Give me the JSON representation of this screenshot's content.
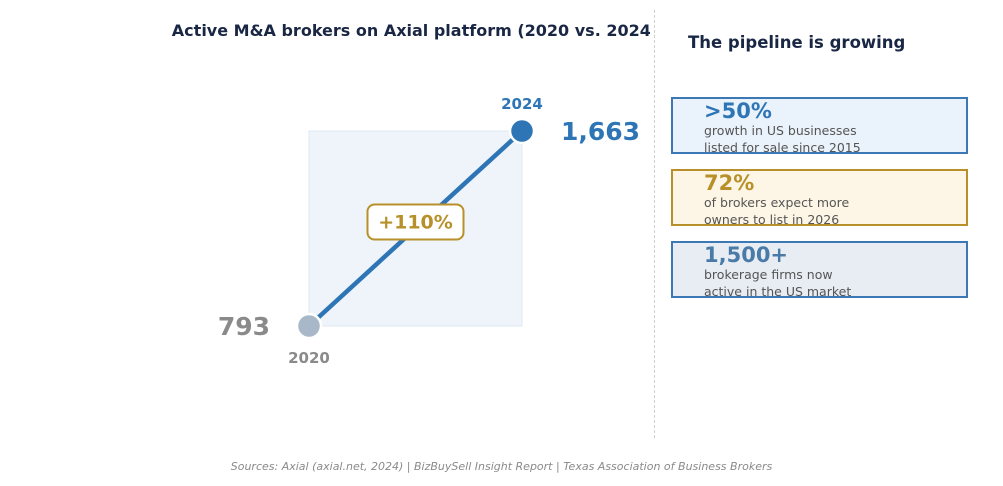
{
  "chart_data": {
    "type": "line",
    "title": "Active M&A brokers on Axial platform (2020 vs. 2024)",
    "categories": [
      "2020",
      "2024"
    ],
    "series": [
      {
        "name": "Active M&A brokers",
        "values": [
          793,
          1663
        ]
      }
    ],
    "value_labels": [
      "793",
      "1,663"
    ],
    "annotation": "+110%",
    "ylim": [
      793,
      1663
    ],
    "colors": {
      "start": "#a9b8c8",
      "end": "#2e75b6",
      "line": "#2e75b6",
      "annotation": "#b8902a",
      "start_text": "#8a8a8a",
      "title": "#1a2744"
    }
  },
  "panel": {
    "title": "The pipeline is growing",
    "cards": [
      {
        "value": ">50%",
        "text_line1": "growth in US businesses",
        "text_line2": "listed for sale since 2015",
        "accent": "#2e75b6",
        "background": "#eaf2fb",
        "border": "#3b78b5"
      },
      {
        "value": "72%",
        "text_line1": "of brokers expect more",
        "text_line2": "owners to list in 2026",
        "accent": "#b8902a",
        "background": "#fdf6e6",
        "border": "#b8902a"
      },
      {
        "value": "1,500+",
        "text_line1": "brokerage firms now",
        "text_line2": "active in the US market",
        "accent": "#4a7aa8",
        "background": "#e7edf3",
        "border": "#3b78b5"
      }
    ]
  },
  "sources": "Sources: Axial (axial.net, 2024)  |  BizBuySell Insight Report  |  Texas Association of Business Brokers"
}
